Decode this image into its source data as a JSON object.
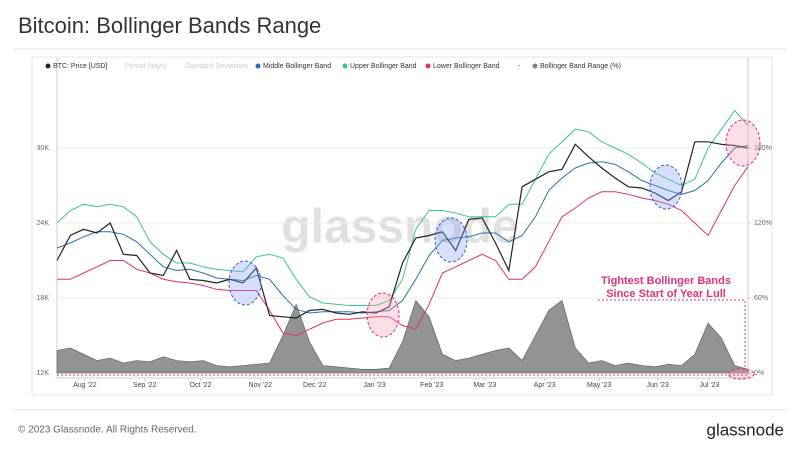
{
  "chart_data": {
    "type": "line",
    "title": "Bitcoin: Bollinger Bands Range",
    "watermark": "glassnode",
    "footer": "© 2023 Glassnode. All Rights Reserved.",
    "logo": "glassnode",
    "annotation": [
      "Tightest Bollinger Bands",
      "Since Start of Year Lull"
    ],
    "inactive_legend": [
      "Period (days)",
      "Standard Deviations",
      "-"
    ],
    "x": [
      0,
      1,
      2,
      3,
      4,
      5,
      6,
      7,
      8,
      9,
      10,
      11,
      12,
      13,
      14,
      15,
      16,
      17,
      18,
      19,
      20,
      21,
      22,
      23,
      24,
      25,
      26,
      27,
      28,
      29,
      30,
      31,
      32,
      33,
      34,
      35,
      36,
      37,
      38,
      39,
      40,
      41,
      42,
      43,
      44,
      45,
      46,
      47,
      48,
      49,
      50,
      51,
      52
    ],
    "xlim": [
      0,
      52
    ],
    "xticks": [
      {
        "value": 2.1,
        "label": "Aug '22"
      },
      {
        "value": 6.6,
        "label": "Sep '22"
      },
      {
        "value": 10.8,
        "label": "Oct '22"
      },
      {
        "value": 15.3,
        "label": "Nov '22"
      },
      {
        "value": 19.4,
        "label": "Dec '22"
      },
      {
        "value": 23.9,
        "label": "Jan '23"
      },
      {
        "value": 28.2,
        "label": "Feb '23"
      },
      {
        "value": 32.2,
        "label": "Mar '23"
      },
      {
        "value": 36.7,
        "label": "Apr '23"
      },
      {
        "value": 40.8,
        "label": "May '23"
      },
      {
        "value": 45.2,
        "label": "Jun '23"
      },
      {
        "value": 49.1,
        "label": "Jul '23"
      }
    ],
    "ylim": [
      11600,
      35600
    ],
    "yticks": [
      {
        "value": 12000,
        "label": "12K"
      },
      {
        "value": 18000,
        "label": "18K"
      },
      {
        "value": 24000,
        "label": "24K"
      },
      {
        "value": 30000,
        "label": "30K"
      }
    ],
    "y2lim": [
      -4,
      236
    ],
    "y2ticks": [
      {
        "value": 0,
        "label": "0%"
      },
      {
        "value": 60,
        "label": "60%"
      },
      {
        "value": 120,
        "label": "120%"
      },
      {
        "value": 180,
        "label": "180%"
      }
    ],
    "series": [
      {
        "name": "Bollinger Band Range (%)",
        "color": "#808080",
        "kind": "area",
        "axis": "y2",
        "values": [
          18,
          20,
          15,
          10,
          12,
          8,
          10,
          9,
          13,
          10,
          9,
          10,
          6,
          5,
          6,
          7,
          8,
          30,
          55,
          25,
          6,
          5,
          4,
          3,
          3,
          4,
          25,
          58,
          45,
          15,
          10,
          12,
          15,
          18,
          20,
          10,
          30,
          50,
          58,
          20,
          8,
          10,
          6,
          8,
          6,
          5,
          7,
          6,
          15,
          40,
          28,
          6,
          3
        ]
      },
      {
        "name": "Upper Bollinger Band",
        "color": "#3cc48f",
        "kind": "line",
        "values": [
          24000,
          25000,
          25500,
          25300,
          25500,
          25300,
          24500,
          22500,
          21500,
          20800,
          20800,
          20500,
          20300,
          20200,
          20100,
          21300,
          21500,
          21200,
          19500,
          18100,
          17600,
          17500,
          17400,
          17400,
          17400,
          17800,
          19500,
          23500,
          25000,
          25000,
          24800,
          24500,
          24500,
          24500,
          25500,
          25500,
          27500,
          29500,
          30500,
          31500,
          31300,
          30500,
          30000,
          29500,
          28800,
          28000,
          27500,
          27000,
          27500,
          30000,
          31500,
          33000,
          31800
        ]
      },
      {
        "name": "Lower Bollinger Band",
        "color": "#e0345c",
        "kind": "line",
        "values": [
          19500,
          19500,
          20000,
          20500,
          21000,
          21000,
          20300,
          20000,
          19500,
          19300,
          19200,
          19000,
          18700,
          18600,
          18600,
          18600,
          17000,
          15200,
          15000,
          15500,
          16000,
          16300,
          16300,
          16400,
          16500,
          16500,
          15800,
          15500,
          17500,
          20000,
          20500,
          21000,
          21500,
          21000,
          19500,
          19500,
          20500,
          22500,
          24500,
          25200,
          26000,
          26500,
          26500,
          26300,
          26000,
          25800,
          25500,
          25000,
          24000,
          23000,
          25000,
          27000,
          28500
        ]
      },
      {
        "name": "Middle Bollinger Band",
        "color": "#2a6fb5",
        "kind": "line",
        "values": [
          22000,
          22400,
          22900,
          23300,
          23300,
          23100,
          22500,
          21500,
          20500,
          20200,
          20300,
          20000,
          19600,
          19500,
          19400,
          19800,
          19500,
          18200,
          17100,
          16800,
          16900,
          16900,
          16900,
          16800,
          16900,
          17000,
          17800,
          19500,
          21400,
          22600,
          22800,
          22900,
          23200,
          23200,
          22500,
          23000,
          24500,
          26600,
          27600,
          28400,
          28800,
          28900,
          28700,
          28100,
          27400,
          27000,
          26600,
          26300,
          26600,
          27400,
          28800,
          30000,
          30200
        ]
      },
      {
        "name": "BTC: Price [USD]",
        "color": "#222222",
        "kind": "line",
        "values": [
          21000,
          23000,
          23500,
          23200,
          24000,
          21500,
          21400,
          20000,
          19800,
          21800,
          19500,
          19400,
          19200,
          19500,
          19200,
          20400,
          16600,
          16500,
          16400,
          17000,
          17100,
          16800,
          16700,
          16900,
          16800,
          17300,
          20800,
          22800,
          23000,
          23300,
          21800,
          24300,
          24400,
          22400,
          20200,
          26900,
          27500,
          28100,
          28300,
          30300,
          29300,
          28400,
          27600,
          26900,
          26800,
          26400,
          25800,
          26500,
          30500,
          30500,
          30300,
          30200,
          30000
        ]
      }
    ]
  }
}
